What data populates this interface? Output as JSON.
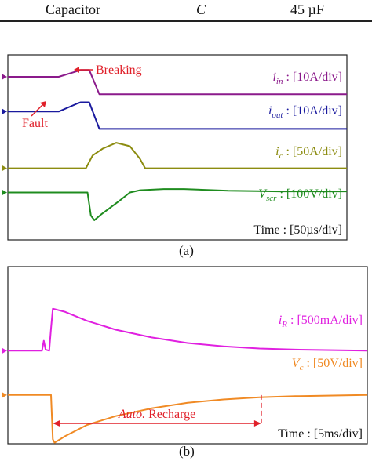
{
  "table_row": {
    "name": "Capacitor",
    "symbol": "C",
    "value": "45 µF"
  },
  "chart_data": [
    {
      "type": "line",
      "panel_label": "(a)",
      "time_scale": "Time : [50µs/div]",
      "x_divisions": 10,
      "y_divisions": 8,
      "grid": false,
      "annotations": [
        "Breaking",
        "Fault"
      ],
      "series": [
        {
          "name_main": "i",
          "name_sub": "in",
          "scale": " : [10A/div]",
          "color": "#8b1a8b",
          "marker_color": "#8b1a8b",
          "baseline_div": 7.05,
          "points": [
            [
              0,
              0
            ],
            [
              1.5,
              0
            ],
            [
              2.05,
              0.25
            ],
            [
              2.15,
              0.3
            ],
            [
              2.4,
              0.3
            ],
            [
              2.7,
              -0.75
            ],
            [
              10,
              -0.75
            ]
          ]
        },
        {
          "name_main": "i",
          "name_sub": "out",
          "scale": " : [10A/div]",
          "color": "#1a1a9e",
          "marker_color": "#1a1a9e",
          "baseline_div": 5.55,
          "points": [
            [
              0,
              0
            ],
            [
              1.5,
              0
            ],
            [
              2.05,
              0.35
            ],
            [
              2.15,
              0.4
            ],
            [
              2.4,
              0.4
            ],
            [
              2.7,
              -0.75
            ],
            [
              10,
              -0.75
            ]
          ]
        },
        {
          "name_main": "i",
          "name_sub": "c",
          "scale": " : [50A/div]",
          "color": "#8c8c10",
          "marker_color": "#8c8c10",
          "baseline_div": 3.1,
          "points": [
            [
              0,
              0
            ],
            [
              2.3,
              0
            ],
            [
              2.5,
              0.55
            ],
            [
              2.8,
              0.85
            ],
            [
              3.2,
              1.1
            ],
            [
              3.6,
              0.95
            ],
            [
              3.9,
              0.4
            ],
            [
              4.05,
              0
            ],
            [
              10,
              0
            ]
          ]
        },
        {
          "name_main": "V",
          "name_sub": "scr",
          "scale": " : [100V/div]",
          "color": "#1f8c1f",
          "marker_color": "#1f8c1f",
          "baseline_div": 2.05,
          "points": [
            [
              0,
              0
            ],
            [
              2.35,
              0
            ],
            [
              2.45,
              -1.0
            ],
            [
              2.55,
              -1.2
            ],
            [
              2.75,
              -0.95
            ],
            [
              3.3,
              -0.35
            ],
            [
              3.6,
              0
            ],
            [
              3.9,
              0.1
            ],
            [
              4.6,
              0.15
            ],
            [
              5.2,
              0.15
            ],
            [
              6.5,
              0.08
            ],
            [
              8,
              0.05
            ],
            [
              10,
              0.05
            ]
          ]
        }
      ]
    },
    {
      "type": "line",
      "panel_label": "(b)",
      "time_scale": "Time : [5ms/div]",
      "x_divisions": 10,
      "y_divisions": 8,
      "grid": false,
      "annotation_recharge_italic": "Auto.",
      "annotation_recharge_rest": " Recharge",
      "series": [
        {
          "name_main": "i",
          "name_sub": "R",
          "scale": " : [500mA/div]",
          "color": "#e020e0",
          "marker_color": "#e020e0",
          "baseline_div": 4.2,
          "points": [
            [
              0,
              0
            ],
            [
              0.95,
              0
            ],
            [
              1.0,
              0.45
            ],
            [
              1.05,
              0.05
            ],
            [
              1.15,
              0
            ],
            [
              1.2,
              1.0
            ],
            [
              1.25,
              1.9
            ],
            [
              1.6,
              1.75
            ],
            [
              2.2,
              1.35
            ],
            [
              3,
              0.95
            ],
            [
              4,
              0.6
            ],
            [
              5,
              0.35
            ],
            [
              6,
              0.2
            ],
            [
              7,
              0.1
            ],
            [
              8,
              0.05
            ],
            [
              10,
              0
            ]
          ]
        },
        {
          "name_main": "V",
          "name_sub": "c",
          "scale": " : [50V/div]",
          "color": "#f08a24",
          "marker_color": "#f08a24",
          "baseline_div": 2.2,
          "points": [
            [
              0,
              0
            ],
            [
              1.2,
              0
            ],
            [
              1.25,
              -2.0
            ],
            [
              1.3,
              -2.15
            ],
            [
              1.6,
              -1.85
            ],
            [
              2.2,
              -1.35
            ],
            [
              3,
              -0.95
            ],
            [
              4,
              -0.6
            ],
            [
              5,
              -0.35
            ],
            [
              6,
              -0.2
            ],
            [
              7,
              -0.1
            ],
            [
              8,
              -0.05
            ],
            [
              10,
              0
            ]
          ]
        }
      ]
    }
  ]
}
